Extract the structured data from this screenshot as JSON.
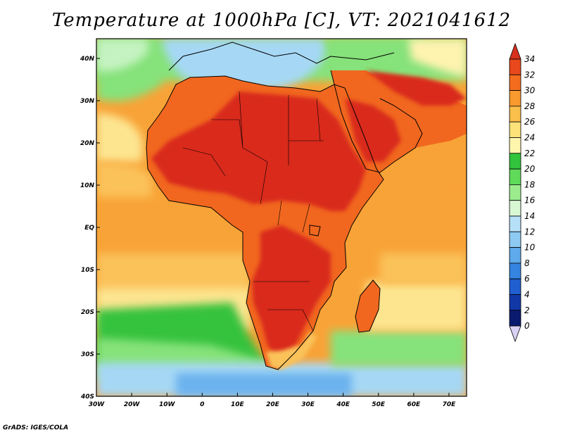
{
  "title": "Temperature at 1000hPa [C], VT: 2021041612",
  "credit": "GrADS: IGES/COLA",
  "lon_labels": [
    "30W",
    "20W",
    "10W",
    "0",
    "10E",
    "20E",
    "30E",
    "40E",
    "50E",
    "60E",
    "70E"
  ],
  "lat_labels": [
    "40N",
    "30N",
    "20N",
    "10N",
    "EQ",
    "10S",
    "20S",
    "30S",
    "40S"
  ],
  "colorbar": {
    "levels": [
      "34",
      "32",
      "30",
      "28",
      "26",
      "24",
      "22",
      "20",
      "18",
      "16",
      "14",
      "12",
      "10",
      "8",
      "6",
      "4",
      "2",
      "0"
    ],
    "colors": [
      "#d7301f",
      "#e8481c",
      "#f36d1e",
      "#f89a2e",
      "#fbbf4c",
      "#fde27a",
      "#fff6ad",
      "#31c43c",
      "#5fda5a",
      "#9cec8e",
      "#d8f8d4",
      "#b6e0f8",
      "#8fcaf3",
      "#5eaaeb",
      "#3484e0",
      "#1f5fd0",
      "#1238a8",
      "#0a1a6e"
    ]
  },
  "map_colors": {
    "hot": "#d92a1a",
    "warm": "#f1671f",
    "orange": "#f8a337",
    "light_orange": "#fbc25a",
    "yellow": "#fde590",
    "pale_yellow": "#fff3b0",
    "green": "#36c23d",
    "light_green": "#86e27a",
    "pale_green": "#c5f3c1",
    "light_blue": "#a6d8f5",
    "blue": "#6cb2ee",
    "mid_blue": "#3d8fe6"
  }
}
